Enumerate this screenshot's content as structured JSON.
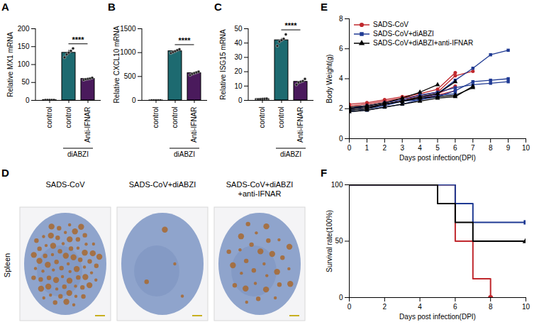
{
  "chart_data": [
    {
      "type": "bar",
      "panel": "A",
      "categories": [
        "control",
        "control",
        "Anti-IFNAR"
      ],
      "groups": [
        null,
        "diABZI",
        "diABZI"
      ],
      "values": [
        1,
        133,
        60
      ],
      "errors": [
        0.2,
        7,
        2
      ],
      "points": [
        [
          0.9,
          1,
          1,
          1,
          1.1
        ],
        [
          120,
          128,
          133,
          138,
          145
        ],
        [
          57,
          59,
          60,
          61,
          63
        ]
      ],
      "colors": [
        "#ffffff",
        "#1d6a70",
        "#4a1a5c"
      ],
      "ylabel": "Relative MX1 mRNA",
      "ylim": [
        0,
        200
      ],
      "yticks": [
        0,
        50,
        100,
        150,
        200
      ],
      "significance": "****"
    },
    {
      "type": "bar",
      "panel": "B",
      "categories": [
        "control",
        "control",
        "Anti-IFNAR"
      ],
      "groups": [
        null,
        "diABZI",
        "diABZI"
      ],
      "values": [
        1,
        1030,
        570
      ],
      "errors": [
        0.2,
        15,
        15
      ],
      "points": [
        [
          0.9,
          1,
          1,
          1,
          1.1
        ],
        [
          990,
          1010,
          1030,
          1050,
          1070
        ],
        [
          530,
          555,
          570,
          585,
          600
        ]
      ],
      "colors": [
        "#ffffff",
        "#1d6a70",
        "#4a1a5c"
      ],
      "ylabel": "Relative CXCL10 mRNA",
      "ylim": [
        0,
        1500
      ],
      "yticks": [
        0,
        500,
        1000,
        1500
      ],
      "significance": "****"
    },
    {
      "type": "bar",
      "panel": "C",
      "categories": [
        "control",
        "control",
        "Anti-IFNAR"
      ],
      "groups": [
        null,
        "diABZI",
        "diABZI"
      ],
      "values": [
        1,
        42,
        13
      ],
      "errors": [
        0.1,
        1.3,
        0.7
      ],
      "points": [
        [
          0.8,
          0.9,
          1,
          1.1,
          1.2
        ],
        [
          38,
          41,
          42,
          43,
          46
        ],
        [
          11,
          12.5,
          13,
          13.5,
          15
        ]
      ],
      "colors": [
        "#ffffff",
        "#1d6a70",
        "#4a1a5c"
      ],
      "ylabel": "Relative ISG15 mRNA",
      "ylim": [
        0,
        50
      ],
      "yticks": [
        0,
        10,
        20,
        30,
        40,
        50
      ],
      "significance": "****"
    },
    {
      "type": "image",
      "panel": "D",
      "row_label": "Spleen",
      "titles": [
        "SADS-CoV",
        "SADS-CoV+diABZI",
        "SADS-CoV+diABZI+anti-IFNAR"
      ]
    },
    {
      "type": "line",
      "panel": "E",
      "xlabel": "Days post infection(DPI)",
      "ylabel": "Body Weight(g)",
      "x": [
        0,
        1,
        2,
        3,
        4,
        5,
        6,
        7,
        8,
        9
      ],
      "series": [
        {
          "name": "SADS-CoV",
          "color": "#c0282d",
          "marker": "circle",
          "values": [
            [
              2.3,
              2.4,
              2.6,
              2.8,
              3.0,
              3.3,
              4.4,
              null,
              null,
              null
            ],
            [
              2.2,
              2.3,
              2.5,
              2.7,
              2.9,
              3.1,
              4.2,
              4.5,
              null,
              null
            ],
            [
              2.1,
              2.2,
              2.4,
              2.6,
              2.8,
              3.0,
              3.5,
              null,
              null,
              null
            ],
            [
              2.0,
              2.1,
              2.3,
              2.5,
              2.7,
              2.9,
              3.2,
              null,
              null,
              null
            ]
          ]
        },
        {
          "name": "SADS-CoV+diABZI",
          "color": "#1f3a93",
          "marker": "square",
          "values": [
            [
              1.9,
              2.0,
              2.2,
              2.5,
              2.7,
              3.0,
              3.9,
              4.7,
              5.6,
              5.9
            ],
            [
              1.8,
              1.9,
              2.1,
              2.3,
              2.6,
              2.8,
              3.2,
              3.8,
              3.9,
              4.0
            ],
            [
              2.0,
              2.2,
              2.4,
              2.6,
              2.9,
              3.1,
              3.4,
              3.6,
              3.7,
              3.8
            ],
            [
              2.0,
              2.1,
              2.3,
              2.5,
              2.6,
              2.9,
              3.0,
              null,
              null,
              null
            ]
          ]
        },
        {
          "name": "SADS-CoV+diABZI+anti-IFNAR",
          "color": "#000000",
          "marker": "triangle",
          "values": [
            [
              2.1,
              2.2,
              2.4,
              2.7,
              3.1,
              3.6,
              null,
              null,
              null,
              null
            ],
            [
              1.9,
              2.0,
              2.3,
              2.5,
              2.8,
              3.0,
              3.8,
              null,
              null,
              null
            ],
            [
              2.0,
              2.1,
              2.3,
              2.5,
              2.7,
              2.8,
              2.9,
              3.4,
              null,
              null
            ],
            [
              1.8,
              1.9,
              2.1,
              2.3,
              2.5,
              2.7,
              2.8,
              3.5,
              null,
              null
            ]
          ]
        }
      ],
      "xlim": [
        0,
        10
      ],
      "xticks": [
        0,
        1,
        2,
        3,
        4,
        5,
        6,
        7,
        8,
        9,
        10
      ],
      "ylim": [
        0,
        8
      ],
      "yticks": [
        0,
        2,
        4,
        6,
        8
      ],
      "legend": "top-left"
    },
    {
      "type": "line",
      "panel": "F",
      "xlabel": "Days post infection(DPI)",
      "ylabel": "Survival rate(100%)",
      "line_style": "step",
      "series": [
        {
          "color": "#c0282d",
          "marker": "circle",
          "x": [
            0,
            6,
            7,
            8
          ],
          "values": [
            100,
            50,
            16.7,
            0
          ]
        },
        {
          "color": "#1f3a93",
          "marker": "square",
          "x": [
            0,
            6,
            7,
            10
          ],
          "values": [
            100,
            83.3,
            66.7,
            66.7
          ]
        },
        {
          "color": "#000000",
          "marker": "triangle",
          "x": [
            0,
            5,
            6,
            7,
            10
          ],
          "values": [
            100,
            83.3,
            66.7,
            50,
            50
          ]
        }
      ],
      "xlim": [
        0,
        10
      ],
      "xticks": [
        0,
        2,
        4,
        6,
        8,
        10
      ],
      "ylim": [
        0,
        100
      ],
      "yticks": [
        0,
        50,
        100
      ]
    }
  ]
}
